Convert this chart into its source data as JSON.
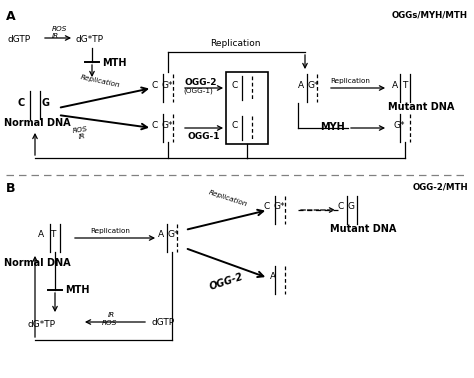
{
  "fig_width": 4.74,
  "fig_height": 3.78,
  "dpi": 100,
  "bg_color": "#ffffff",
  "panel_A_label": "A",
  "panel_B_label": "B",
  "title_A": "OGGs/MYH/MTH",
  "title_B": "OGG-2/MTH"
}
